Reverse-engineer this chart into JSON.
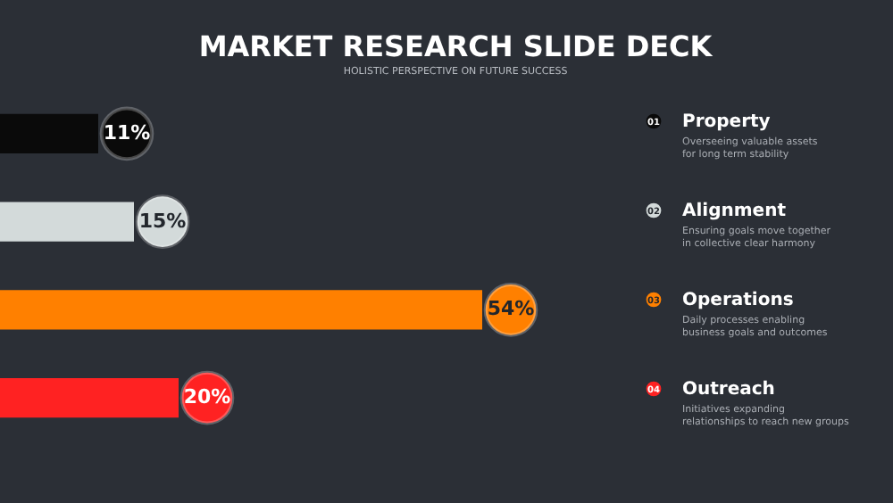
{
  "chart_data": {
    "type": "bar",
    "orientation": "horizontal",
    "title": "MARKET RESEARCH SLIDE DECK",
    "subtitle": "HOLISTIC PERSPECTIVE ON FUTURE SUCCESS",
    "categories": [
      "Property",
      "Alignment",
      "Operations",
      "Outreach"
    ],
    "values": [
      11,
      15,
      54,
      20
    ],
    "value_labels": [
      "11%",
      "15%",
      "54%",
      "20%"
    ],
    "colors": [
      "#0a0a0a",
      "#d3dada",
      "#ff8000",
      "#ff2222"
    ],
    "annotations": [
      "01",
      "Overseeing valuable assets for long term stability",
      "02",
      "Ensuring goals move together in collective clear harmony",
      "03",
      "Daily processes enabling business goals and outcomes",
      "04",
      "Initiatives expanding relationships to reach new groups"
    ]
  }
}
